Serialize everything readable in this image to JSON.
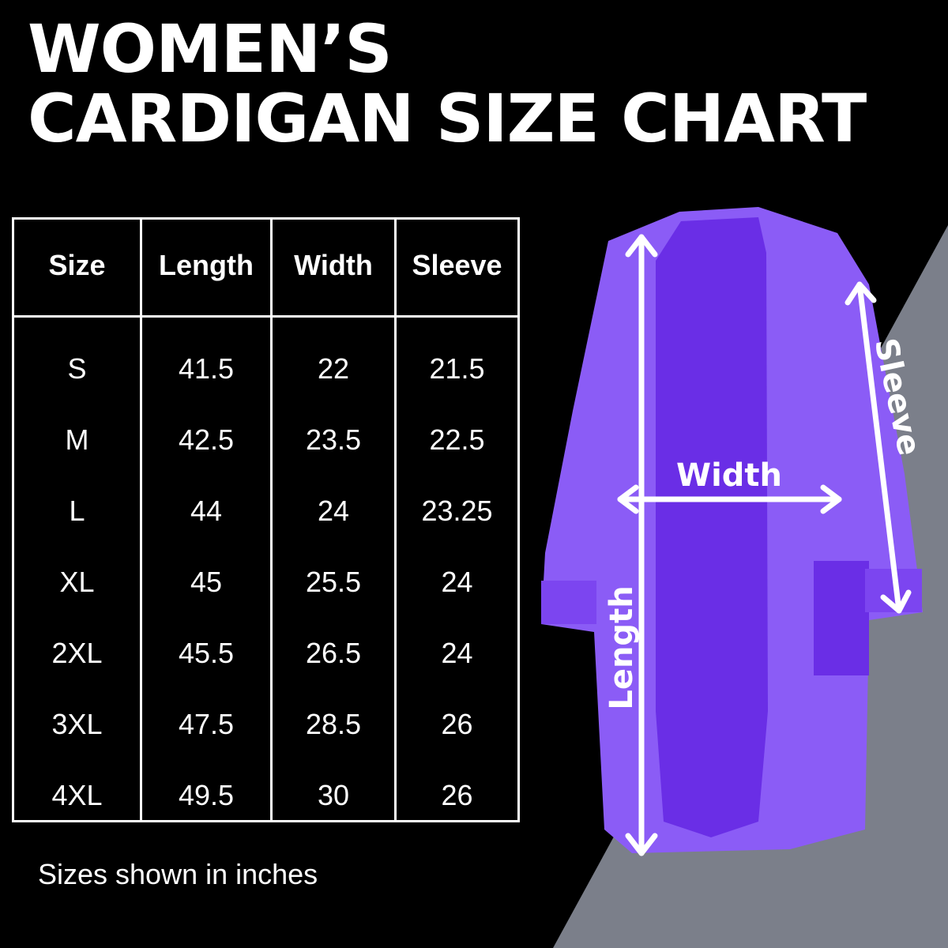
{
  "title_lines": [
    "WOMEN’S",
    "CARDIGAN SIZE CHART"
  ],
  "colors": {
    "background": "#000000",
    "triangle": "#7b7f8a",
    "cardigan": "#8b5cf6",
    "cardigan_dark": "#6a2ee6",
    "text": "#ffffff"
  },
  "chart_data": {
    "type": "table",
    "columns": [
      "Size",
      "Length",
      "Width",
      "Sleeve"
    ],
    "rows": [
      [
        "S",
        "41.5",
        "22",
        "21.5"
      ],
      [
        "M",
        "42.5",
        "23.5",
        "22.5"
      ],
      [
        "L",
        "44",
        "24",
        "23.25"
      ],
      [
        "XL",
        "45",
        "25.5",
        "24"
      ],
      [
        "2XL",
        "45.5",
        "26.5",
        "24"
      ],
      [
        "3XL",
        "47.5",
        "28.5",
        "26"
      ],
      [
        "4XL",
        "49.5",
        "30",
        "26"
      ]
    ]
  },
  "note": "Sizes shown in inches",
  "diagram_labels": {
    "width": "Width",
    "length": "Length",
    "sleeve": "Sleeve"
  }
}
